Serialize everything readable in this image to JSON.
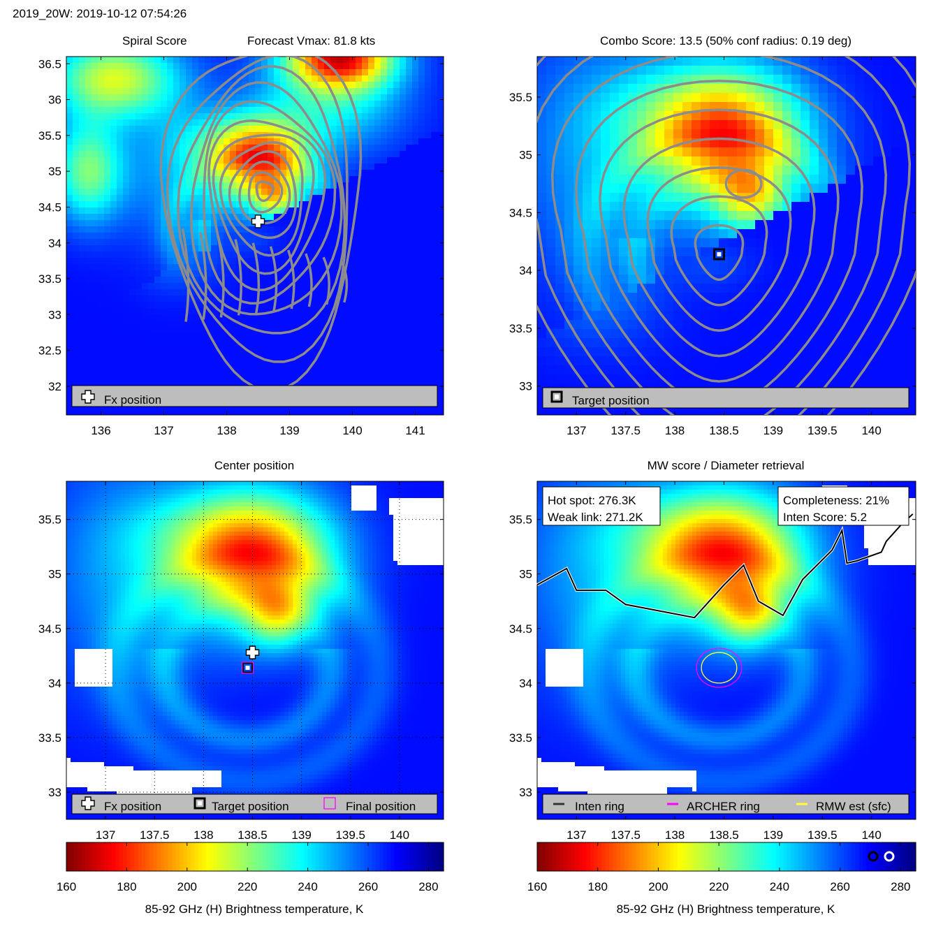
{
  "page_title": "2019_20W: 2019-10-12 07:54:26",
  "panels": {
    "spiral": {
      "title_left": "Spiral Score",
      "title_right": "Forecast Vmax: 81.8 kts",
      "legend": [
        "Fx position"
      ]
    },
    "combo": {
      "title": "Combo Score: 13.5  (50% conf radius: 0.19 deg)",
      "legend": [
        "Target position"
      ]
    },
    "center": {
      "title": "Center position",
      "legend": [
        "Fx position",
        "Target position",
        "Final position"
      ]
    },
    "mw": {
      "title": "MW score / Diameter retrieval",
      "info_left": [
        "Hot spot: 276.3K",
        "Weak link: 271.2K"
      ],
      "info_right": [
        "Completeness: 21%",
        "Inten Score: 5.2"
      ],
      "legend": [
        "Inten ring",
        "ARCHER ring",
        "RMW est (sfc)"
      ]
    }
  },
  "colorbar": {
    "label": "85-92 GHz (H) Brightness temperature, K",
    "ticks": [
      "160",
      "180",
      "200",
      "220",
      "240",
      "260",
      "280"
    ],
    "range": [
      160,
      285
    ]
  },
  "colors": {
    "colormap": "jet-reversed",
    "contour": "#8c8c8c",
    "legend_bg": "#bdbdbd",
    "archer_ring": "#ff00ff",
    "rmw_ring": "#ffff33"
  },
  "chart_data": [
    {
      "type": "heatmap",
      "panel": "Spiral Score",
      "x_ticks": [
        "136",
        "137",
        "138",
        "139",
        "140",
        "141"
      ],
      "y_ticks": [
        "36.5",
        "36",
        "35.5",
        "35",
        "34.5",
        "34",
        "33.5",
        "33",
        "32.5",
        "32"
      ],
      "xlim": [
        135.45,
        141.45
      ],
      "ylim": [
        31.6,
        36.6
      ],
      "markers": [
        {
          "name": "Fx position",
          "lon": 138.5,
          "lat": 34.3
        }
      ]
    },
    {
      "type": "heatmap",
      "panel": "Combo Score",
      "x_ticks": [
        "137",
        "137.5",
        "138",
        "138.5",
        "139",
        "139.5",
        "140"
      ],
      "y_ticks": [
        "35.5",
        "35",
        "34.5",
        "34",
        "33.5",
        "33"
      ],
      "xlim": [
        136.6,
        140.45
      ],
      "ylim": [
        32.75,
        35.85
      ],
      "markers": [
        {
          "name": "Target position",
          "lon": 138.45,
          "lat": 34.14
        }
      ]
    },
    {
      "type": "heatmap",
      "panel": "Center position",
      "x_ticks": [
        "137",
        "137.5",
        "138",
        "138.5",
        "139",
        "139.5",
        "140"
      ],
      "y_ticks": [
        "35.5",
        "35",
        "34.5",
        "34",
        "33.5",
        "33"
      ],
      "xlim": [
        136.6,
        140.45
      ],
      "ylim": [
        32.75,
        35.85
      ],
      "grid": "on",
      "markers": [
        {
          "name": "Fx position",
          "lon": 138.5,
          "lat": 34.28
        },
        {
          "name": "Target position",
          "lon": 138.45,
          "lat": 34.14
        },
        {
          "name": "Final position",
          "lon": 138.45,
          "lat": 34.14
        }
      ]
    },
    {
      "type": "heatmap",
      "panel": "MW score / Diameter retrieval",
      "x_ticks": [
        "137",
        "137.5",
        "138",
        "138.5",
        "139",
        "139.5",
        "140"
      ],
      "y_ticks": [
        "35.5",
        "35",
        "34.5",
        "34",
        "33.5",
        "33"
      ],
      "xlim": [
        136.6,
        140.45
      ],
      "ylim": [
        32.75,
        35.85
      ],
      "rings": [
        {
          "name": "ARCHER ring",
          "lon": 138.45,
          "lat": 34.14,
          "radius_deg": 0.23
        },
        {
          "name": "RMW est (sfc)",
          "lon": 138.45,
          "lat": 34.14,
          "radius_deg": 0.18
        }
      ]
    }
  ]
}
